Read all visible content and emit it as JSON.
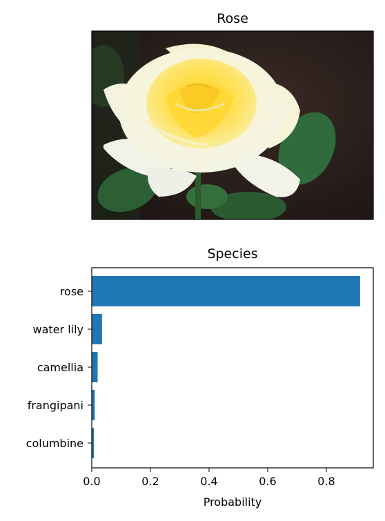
{
  "image_panel": {
    "title": "Rose",
    "image_subject": "yellow-rose"
  },
  "colors": {
    "bar": "#1f77b4",
    "rose_center": "#ffd93a",
    "rose_petal": "#fafbe6",
    "leaf": "#2f6b3c",
    "background_dark": "#241a18"
  },
  "chart_data": {
    "type": "bar",
    "orientation": "horizontal",
    "title": "Species",
    "xlabel": "Probability",
    "ylabel": "",
    "categories": [
      "rose",
      "water lily",
      "camellia",
      "frangipani",
      "columbine"
    ],
    "values": [
      0.915,
      0.035,
      0.02,
      0.01,
      0.007
    ],
    "xlim": [
      0,
      0.96
    ],
    "xticks": [
      0.0,
      0.2,
      0.4,
      0.6,
      0.8
    ],
    "xtick_labels": [
      "0.0",
      "0.2",
      "0.4",
      "0.6",
      "0.8"
    ],
    "grid": false,
    "legend": "none"
  }
}
